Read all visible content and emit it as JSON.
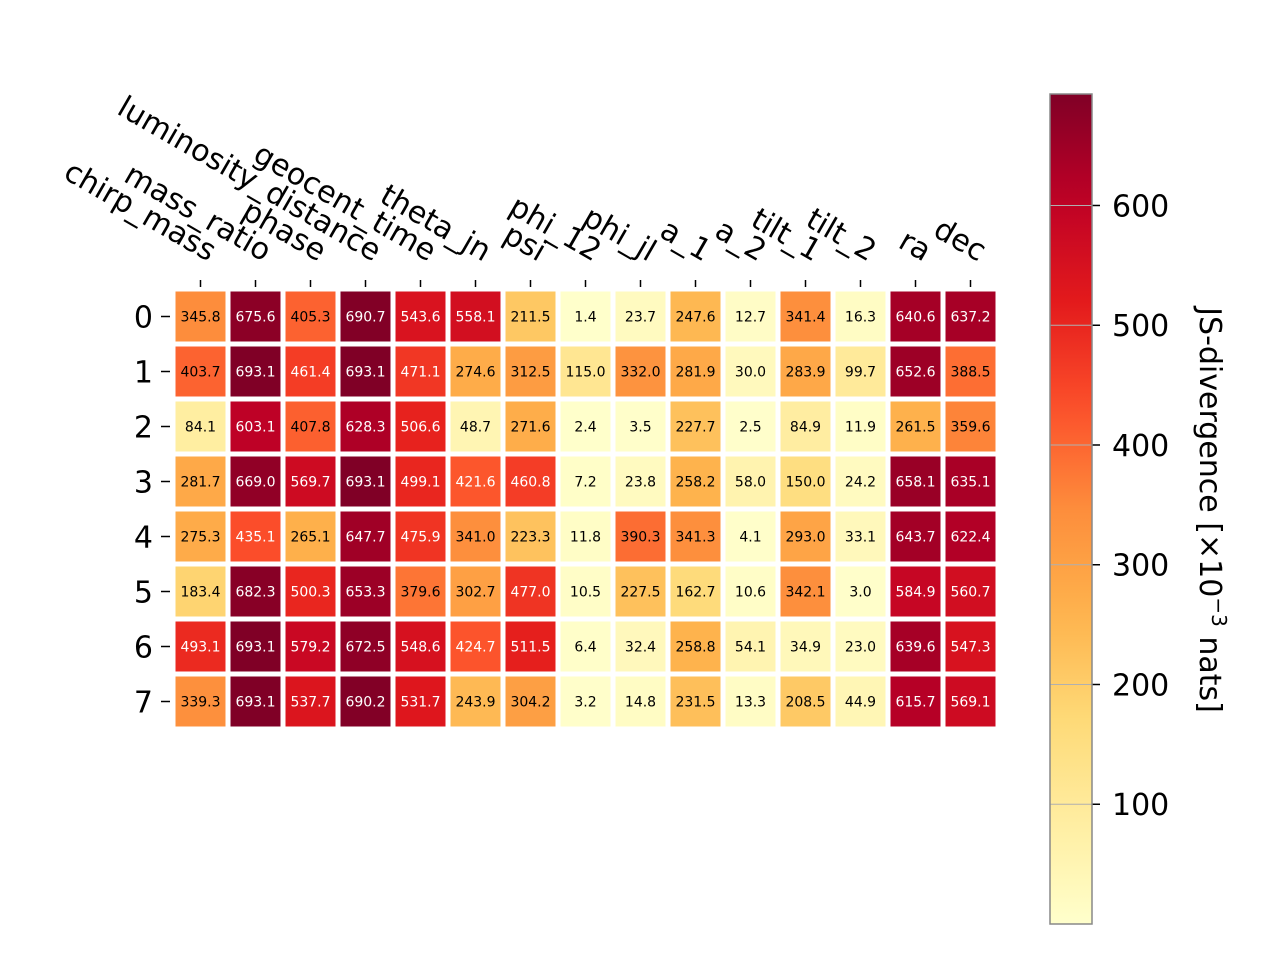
{
  "chart_data": {
    "type": "heatmap",
    "columns": [
      "chirp_mass",
      "mass_ratio",
      "phase",
      "luminosity_distance",
      "geocent_time",
      "theta_jn",
      "psi",
      "phi_12",
      "phi_jl",
      "a_1",
      "a_2",
      "tilt_1",
      "tilt_2",
      "ra",
      "dec"
    ],
    "rows": [
      "0",
      "1",
      "2",
      "3",
      "4",
      "5",
      "6",
      "7"
    ],
    "values": [
      [
        345.8,
        675.6,
        405.3,
        690.7,
        543.6,
        558.1,
        211.5,
        1.4,
        23.7,
        247.6,
        12.7,
        341.4,
        16.3,
        640.6,
        637.2
      ],
      [
        403.7,
        693.1,
        461.4,
        693.1,
        471.1,
        274.6,
        312.5,
        115.0,
        332.0,
        281.9,
        30.0,
        283.9,
        99.7,
        652.6,
        388.5
      ],
      [
        84.1,
        603.1,
        407.8,
        628.3,
        506.6,
        48.7,
        271.6,
        2.4,
        3.5,
        227.7,
        2.5,
        84.9,
        11.9,
        261.5,
        359.6
      ],
      [
        281.7,
        669.0,
        569.7,
        693.1,
        499.1,
        421.6,
        460.8,
        7.2,
        23.8,
        258.2,
        58.0,
        150.0,
        24.2,
        658.1,
        635.1
      ],
      [
        275.3,
        435.1,
        265.1,
        647.7,
        475.9,
        341.0,
        223.3,
        11.8,
        390.3,
        341.3,
        4.1,
        293.0,
        33.1,
        643.7,
        622.4
      ],
      [
        183.4,
        682.3,
        500.3,
        653.3,
        379.6,
        302.7,
        477.0,
        10.5,
        227.5,
        162.7,
        10.6,
        342.1,
        3.0,
        584.9,
        560.7
      ],
      [
        493.1,
        693.1,
        579.2,
        672.5,
        548.6,
        424.7,
        511.5,
        6.4,
        32.4,
        258.8,
        54.1,
        34.9,
        23.0,
        639.6,
        547.3
      ],
      [
        339.3,
        693.1,
        537.7,
        690.2,
        531.7,
        243.9,
        304.2,
        3.2,
        14.8,
        231.5,
        13.3,
        208.5,
        44.9,
        615.7,
        569.1
      ]
    ],
    "value_range": [
      0,
      693.1
    ],
    "colormap": "YlOrRd",
    "colorbar": {
      "label": "JS-divergence [×10",
      "label_exponent": "−3",
      "label_suffix": " nats]",
      "ticks": [
        "100",
        "200",
        "300",
        "400",
        "500",
        "600"
      ],
      "tick_values": [
        100,
        200,
        300,
        400,
        500,
        600
      ]
    },
    "grid": false
  }
}
